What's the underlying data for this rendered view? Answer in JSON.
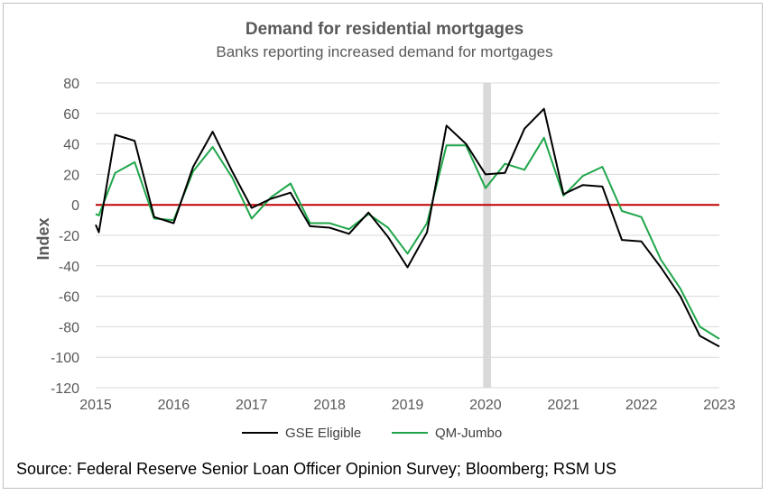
{
  "chart_data": {
    "type": "line",
    "title": "Demand for residential mortgages",
    "subtitle": "Banks reporting increased demand for mortgages",
    "xlabel": "",
    "ylabel": "Index",
    "ylim": [
      -120,
      80
    ],
    "yticks": [
      80,
      60,
      40,
      20,
      0,
      -20,
      -40,
      -60,
      -80,
      -100,
      -120
    ],
    "xlim": [
      2015,
      2023
    ],
    "xticks": [
      "2015",
      "2016",
      "2017",
      "2018",
      "2019",
      "2020",
      "2021",
      "2022",
      "2023"
    ],
    "recession_band": [
      2019.97,
      2020.07
    ],
    "zero_line": true,
    "series": [
      {
        "name": "GSE Eligible",
        "color": "#000000",
        "points": [
          [
            2015.0,
            -13
          ],
          [
            2015.04,
            -18
          ],
          [
            2015.25,
            46
          ],
          [
            2015.5,
            42
          ],
          [
            2015.75,
            -8
          ],
          [
            2016.0,
            -12
          ],
          [
            2016.25,
            25
          ],
          [
            2016.5,
            48
          ],
          [
            2016.75,
            22
          ],
          [
            2017.0,
            -2
          ],
          [
            2017.25,
            4
          ],
          [
            2017.5,
            8
          ],
          [
            2017.75,
            -14
          ],
          [
            2018.0,
            -15
          ],
          [
            2018.25,
            -19
          ],
          [
            2018.5,
            -5
          ],
          [
            2018.75,
            -21
          ],
          [
            2019.0,
            -41
          ],
          [
            2019.25,
            -18
          ],
          [
            2019.5,
            52
          ],
          [
            2019.75,
            40
          ],
          [
            2020.0,
            20
          ],
          [
            2020.25,
            21
          ],
          [
            2020.5,
            50
          ],
          [
            2020.75,
            63
          ],
          [
            2021.0,
            7
          ],
          [
            2021.25,
            13
          ],
          [
            2021.5,
            12
          ],
          [
            2021.75,
            -23
          ],
          [
            2022.0,
            -24
          ],
          [
            2022.25,
            -41
          ],
          [
            2022.5,
            -60
          ],
          [
            2022.75,
            -86
          ],
          [
            2023.0,
            -93
          ]
        ]
      },
      {
        "name": "QM-Jumbo",
        "color": "#1fa64a",
        "points": [
          [
            2015.0,
            -6
          ],
          [
            2015.04,
            -7
          ],
          [
            2015.25,
            21
          ],
          [
            2015.5,
            28
          ],
          [
            2015.75,
            -9
          ],
          [
            2016.0,
            -10
          ],
          [
            2016.25,
            22
          ],
          [
            2016.5,
            38
          ],
          [
            2016.75,
            18
          ],
          [
            2017.0,
            -9
          ],
          [
            2017.25,
            5
          ],
          [
            2017.5,
            14
          ],
          [
            2017.75,
            -12
          ],
          [
            2018.0,
            -12
          ],
          [
            2018.25,
            -16
          ],
          [
            2018.5,
            -6
          ],
          [
            2018.75,
            -15
          ],
          [
            2019.0,
            -32
          ],
          [
            2019.25,
            -12
          ],
          [
            2019.5,
            39
          ],
          [
            2019.75,
            39
          ],
          [
            2020.0,
            11
          ],
          [
            2020.25,
            27
          ],
          [
            2020.5,
            23
          ],
          [
            2020.75,
            44
          ],
          [
            2021.0,
            6
          ],
          [
            2021.25,
            19
          ],
          [
            2021.5,
            25
          ],
          [
            2021.75,
            -4
          ],
          [
            2022.0,
            -8
          ],
          [
            2022.25,
            -36
          ],
          [
            2022.5,
            -55
          ],
          [
            2022.75,
            -80
          ],
          [
            2023.0,
            -88
          ]
        ]
      }
    ],
    "legend_position": "bottom-center"
  },
  "source": "Source: Federal Reserve Senior Loan Officer Opinion Survey; Bloomberg; RSM US",
  "colors": {
    "gridline": "#d9d9d9",
    "zero_line": "#c00000",
    "recession": "#d9d9d9",
    "text": "#595959"
  }
}
